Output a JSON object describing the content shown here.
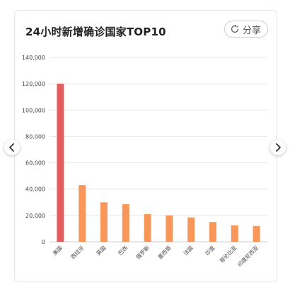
{
  "card": {
    "title": "24小时新增确诊国家TOP10",
    "share_label": "分享"
  },
  "nav": {
    "prev_icon": "chevron-left-icon",
    "next_icon": "chevron-right-icon"
  },
  "chart_data": {
    "type": "bar",
    "title": "24小时新增确诊国家TOP10",
    "xlabel": "",
    "ylabel": "",
    "categories": [
      "美国",
      "西班牙",
      "英国",
      "巴西",
      "俄罗斯",
      "墨西哥",
      "法国",
      "印度",
      "哥伦比亚",
      "印度尼西亚"
    ],
    "values": [
      120000,
      43000,
      30000,
      28500,
      21000,
      20000,
      18500,
      15000,
      12500,
      12000
    ],
    "ylim": [
      0,
      140000
    ],
    "yticks": [
      0,
      20000,
      40000,
      60000,
      80000,
      100000,
      120000,
      140000
    ],
    "ytick_labels": [
      "0",
      "20,000",
      "40,000",
      "60,000",
      "80,000",
      "100,000",
      "120,000",
      "140,000"
    ],
    "grid": true,
    "colors": {
      "first_bar": "#e35d5f",
      "other_bars": "#f9975b",
      "grid": "#e8e8e8",
      "axis_text": "#444444"
    }
  }
}
